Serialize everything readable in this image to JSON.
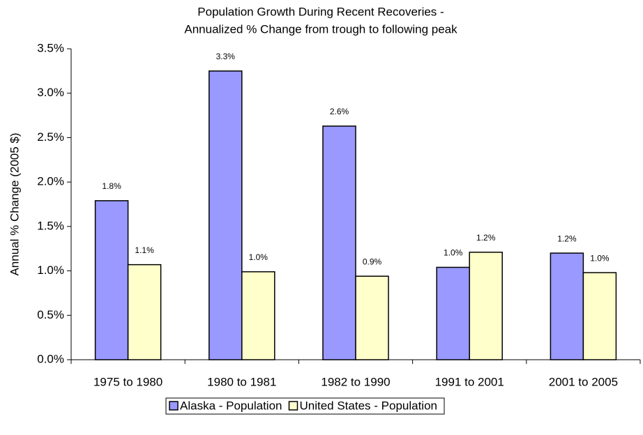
{
  "chart_data": {
    "type": "bar",
    "title": "Population Growth During Recent Recoveries -",
    "subtitle": "Annualized % Change from trough to following peak",
    "y_label": "Annual % Change (2005 $)",
    "categories": [
      "1975 to 1980",
      "1980 to 1981",
      "1982 to 1990",
      "1991 to 2001",
      "2001 to 2005"
    ],
    "series": [
      {
        "name": "Alaska - Population",
        "color": "#9999ff",
        "values": [
          1.79,
          3.25,
          2.63,
          1.04,
          1.2
        ],
        "value_labels": [
          "1.8%",
          "3.3%",
          "2.6%",
          "1.0%",
          "1.2%"
        ]
      },
      {
        "name": "United States - Population",
        "color": "#ffffcc",
        "values": [
          1.07,
          0.99,
          0.94,
          1.21,
          0.98
        ],
        "value_labels": [
          "1.1%",
          "1.0%",
          "0.9%",
          "1.2%",
          "1.0%"
        ]
      }
    ],
    "ylim": [
      0,
      3.5
    ],
    "yticks": [
      {
        "value": 0,
        "label": "0.0%"
      },
      {
        "value": 0.5,
        "label": "0.5%"
      },
      {
        "value": 1,
        "label": "1.0%"
      },
      {
        "value": 1.5,
        "label": "1.5%"
      },
      {
        "value": 2,
        "label": "2.0%"
      },
      {
        "value": 2.5,
        "label": "2.5%"
      },
      {
        "value": 3,
        "label": "3.0%"
      },
      {
        "value": 3.5,
        "label": "3.5%"
      }
    ],
    "grid": false,
    "legend": "bottom"
  }
}
